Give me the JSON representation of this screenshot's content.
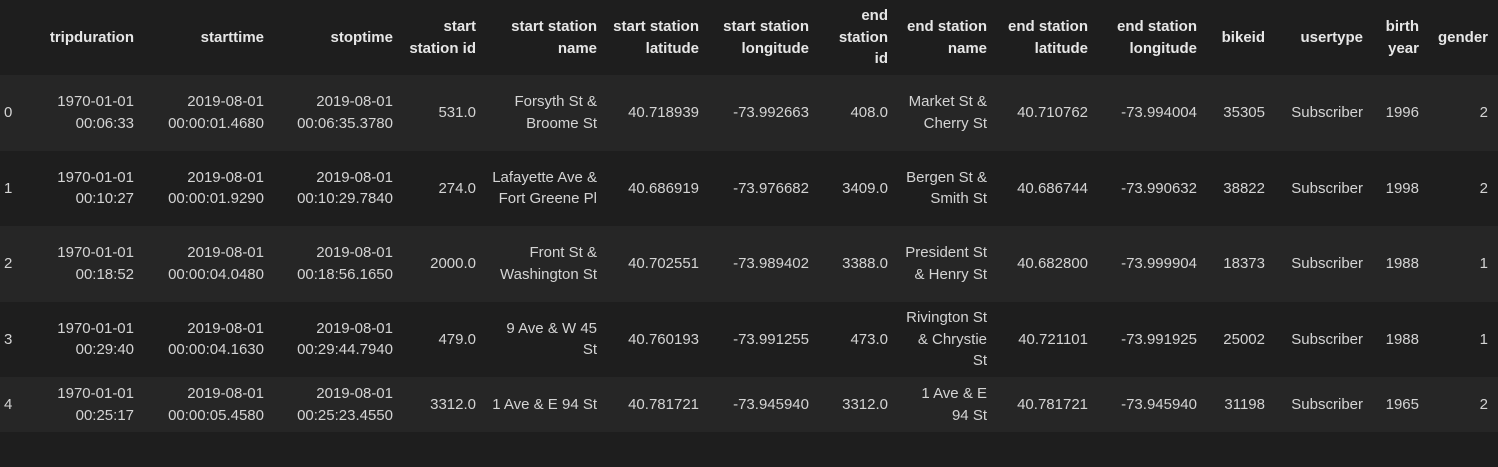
{
  "columns": [
    "",
    "tripduration",
    "starttime",
    "stoptime",
    "start station id",
    "start station name",
    "start station latitude",
    "start station longitude",
    "end station id",
    "end station name",
    "end station latitude",
    "end station longitude",
    "bikeid",
    "usertype",
    "birth year",
    "gender"
  ],
  "rows": [
    [
      "0",
      "1970-01-01 00:06:33",
      "2019-08-01 00:00:01.4680",
      "2019-08-01 00:06:35.3780",
      "531.0",
      "Forsyth St & Broome St",
      "40.718939",
      "-73.992663",
      "408.0",
      "Market St & Cherry St",
      "40.710762",
      "-73.994004",
      "35305",
      "Subscriber",
      "1996",
      "2"
    ],
    [
      "1",
      "1970-01-01 00:10:27",
      "2019-08-01 00:00:01.9290",
      "2019-08-01 00:10:29.7840",
      "274.0",
      "Lafayette Ave & Fort Greene Pl",
      "40.686919",
      "-73.976682",
      "3409.0",
      "Bergen St & Smith St",
      "40.686744",
      "-73.990632",
      "38822",
      "Subscriber",
      "1998",
      "2"
    ],
    [
      "2",
      "1970-01-01 00:18:52",
      "2019-08-01 00:00:04.0480",
      "2019-08-01 00:18:56.1650",
      "2000.0",
      "Front St & Washington St",
      "40.702551",
      "-73.989402",
      "3388.0",
      "President St & Henry St",
      "40.682800",
      "-73.999904",
      "18373",
      "Subscriber",
      "1988",
      "1"
    ],
    [
      "3",
      "1970-01-01 00:29:40",
      "2019-08-01 00:00:04.1630",
      "2019-08-01 00:29:44.7940",
      "479.0",
      "9 Ave & W 45 St",
      "40.760193",
      "-73.991255",
      "473.0",
      "Rivington St & Chrystie St",
      "40.721101",
      "-73.991925",
      "25002",
      "Subscriber",
      "1988",
      "1"
    ],
    [
      "4",
      "1970-01-01 00:25:17",
      "2019-08-01 00:00:05.4580",
      "2019-08-01 00:25:23.4550",
      "3312.0",
      "1 Ave & E 94 St",
      "40.781721",
      "-73.945940",
      "3312.0",
      "1 Ave & E 94 St",
      "40.781721",
      "-73.945940",
      "31198",
      "Subscriber",
      "1965",
      "2"
    ]
  ]
}
